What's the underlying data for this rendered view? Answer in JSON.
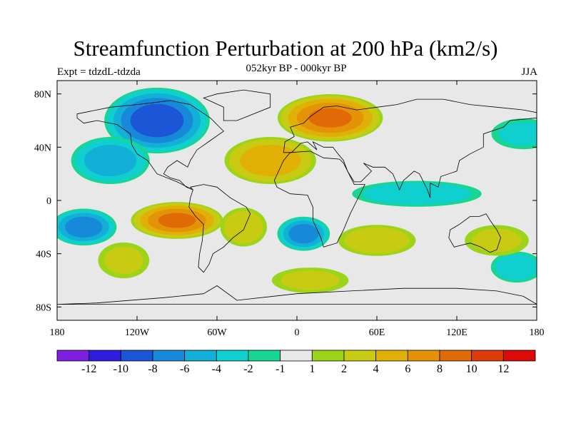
{
  "title": "Streamfunction Perturbation at 200 hPa (km2/s)",
  "subtitle": "052kyr BP - 000kyr BP",
  "left_string": "Expt = tdzdL-tdzda",
  "right_string": "JJA",
  "colors": {
    "background_ocean": "#e8e8e8",
    "coastline": "#000000"
  },
  "chart_data": {
    "type": "heatmap",
    "title": "Streamfunction Perturbation at 200 hPa (km2/s)",
    "subtitle": "052kyr BP - 000kyr BP",
    "xlim": [
      -180,
      180
    ],
    "ylim": [
      -90,
      90
    ],
    "x_ticks": [
      {
        "value": -180,
        "label": "180"
      },
      {
        "value": -120,
        "label": "120W"
      },
      {
        "value": -60,
        "label": "60W"
      },
      {
        "value": 0,
        "label": "0"
      },
      {
        "value": 60,
        "label": "60E"
      },
      {
        "value": 120,
        "label": "120E"
      },
      {
        "value": 180,
        "label": "180"
      }
    ],
    "y_ticks": [
      {
        "value": 80,
        "label": "80N"
      },
      {
        "value": 40,
        "label": "40N"
      },
      {
        "value": 0,
        "label": "0"
      },
      {
        "value": -40,
        "label": "40S"
      },
      {
        "value": -80,
        "label": "80S"
      }
    ],
    "colorbar": {
      "colors": [
        "#7d1ee0",
        "#2e1de0",
        "#1b56d6",
        "#1689d8",
        "#12afd6",
        "#10cfcf",
        "#18d692",
        "#e8e8e8",
        "#9cd41a",
        "#c8cb12",
        "#e0b006",
        "#e49207",
        "#e06a06",
        "#dc3c0a",
        "#dd0a0a"
      ],
      "boundaries": [
        {
          "value": -12,
          "label": "-12"
        },
        {
          "value": -10,
          "label": "-10"
        },
        {
          "value": -8,
          "label": "-8"
        },
        {
          "value": -6,
          "label": "-6"
        },
        {
          "value": -4,
          "label": "-4"
        },
        {
          "value": -2,
          "label": "-2"
        },
        {
          "value": -1,
          "label": "-1"
        },
        {
          "value": 1,
          "label": "1"
        },
        {
          "value": 2,
          "label": "2"
        },
        {
          "value": 4,
          "label": "4"
        },
        {
          "value": 6,
          "label": "6"
        },
        {
          "value": 8,
          "label": "8"
        },
        {
          "value": 10,
          "label": "10"
        },
        {
          "value": 12,
          "label": "12"
        }
      ]
    },
    "anomaly_centers": [
      {
        "region": "North America / Canada",
        "lon": -105,
        "lat": 60,
        "value": -9,
        "radius_lon": 40,
        "radius_lat": 25
      },
      {
        "region": "Eastern North Pacific",
        "lon": -140,
        "lat": 30,
        "value": -5,
        "radius_lon": 30,
        "radius_lat": 18
      },
      {
        "region": "South Pacific",
        "lon": -160,
        "lat": -20,
        "value": -7,
        "radius_lon": 25,
        "radius_lat": 14
      },
      {
        "region": "South Atlantic",
        "lon": 5,
        "lat": -25,
        "value": -7,
        "radius_lon": 20,
        "radius_lat": 13
      },
      {
        "region": "Indian Ocean band",
        "lon": 90,
        "lat": 5,
        "value": -3,
        "radius_lon": 50,
        "radius_lat": 10
      },
      {
        "region": "North Pacific",
        "lon": 170,
        "lat": 50,
        "value": -2,
        "radius_lon": 25,
        "radius_lat": 12
      },
      {
        "region": "Southern Ocean",
        "lon": 165,
        "lat": -50,
        "value": -3,
        "radius_lon": 20,
        "radius_lat": 12
      },
      {
        "region": "Europe / Western Siberia",
        "lon": 25,
        "lat": 62,
        "value": 8,
        "radius_lon": 40,
        "radius_lat": 18
      },
      {
        "region": "North Atlantic / Sahara",
        "lon": -20,
        "lat": 30,
        "value": 5,
        "radius_lon": 35,
        "radius_lat": 18
      },
      {
        "region": "Southeast Pacific / S. America",
        "lon": -90,
        "lat": -15,
        "value": 8,
        "radius_lon": 35,
        "radius_lat": 14
      },
      {
        "region": "Central South Atlantic",
        "lon": -40,
        "lat": -20,
        "value": 3,
        "radius_lon": 18,
        "radius_lat": 15
      },
      {
        "region": "South Indian Ocean",
        "lon": 60,
        "lat": -30,
        "value": 3,
        "radius_lon": 30,
        "radius_lat": 12
      },
      {
        "region": "South Pacific Ocean high",
        "lon": -130,
        "lat": -45,
        "value": 2,
        "radius_lon": 20,
        "radius_lat": 14
      },
      {
        "region": "Southwestern Pacific",
        "lon": 150,
        "lat": -30,
        "value": 2,
        "radius_lon": 25,
        "radius_lat": 12
      },
      {
        "region": "Southern Ocean south of Africa",
        "lon": 10,
        "lat": -60,
        "value": 2,
        "radius_lon": 30,
        "radius_lat": 10
      }
    ],
    "annotations": [
      "Expt = tdzdL-tdzda",
      "JJA"
    ]
  }
}
